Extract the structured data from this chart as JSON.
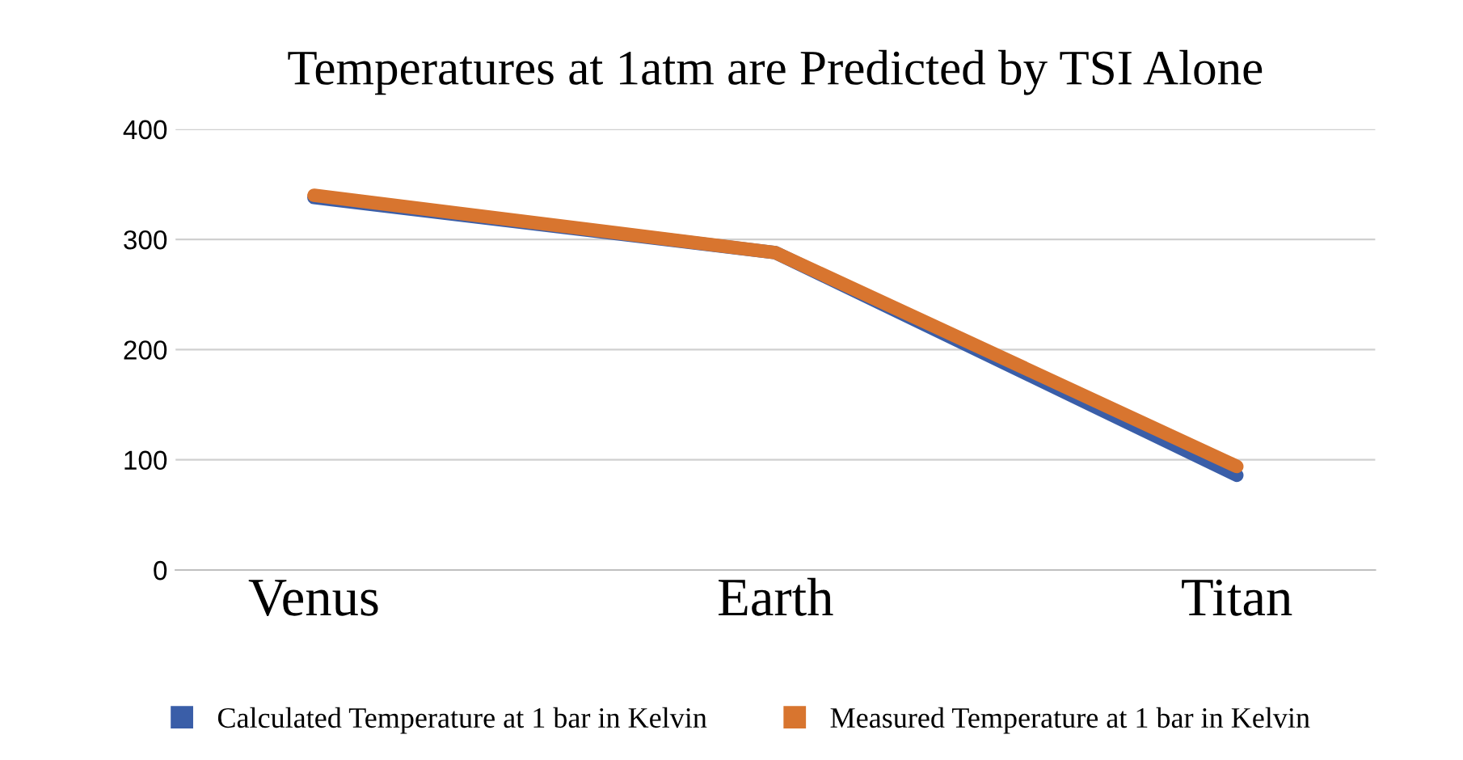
{
  "chart_data": {
    "type": "line",
    "title": "Temperatures at 1atm are Predicted by TSI Alone",
    "categories": [
      "Venus",
      "Earth",
      "Titan"
    ],
    "series": [
      {
        "name": "Calculated Temperature at 1 bar in Kelvin",
        "color": "#3a5ea8",
        "values": [
          338,
          288,
          86
        ]
      },
      {
        "name": "Measured Temperature at 1 bar in Kelvin",
        "color": "#d8752f",
        "values": [
          340,
          288,
          94
        ]
      }
    ],
    "ylim": [
      0,
      400
    ],
    "yticks": [
      0,
      100,
      200,
      300,
      400
    ],
    "grid": "y",
    "legend": "bottom",
    "marker": "none",
    "line_style": "solid"
  }
}
